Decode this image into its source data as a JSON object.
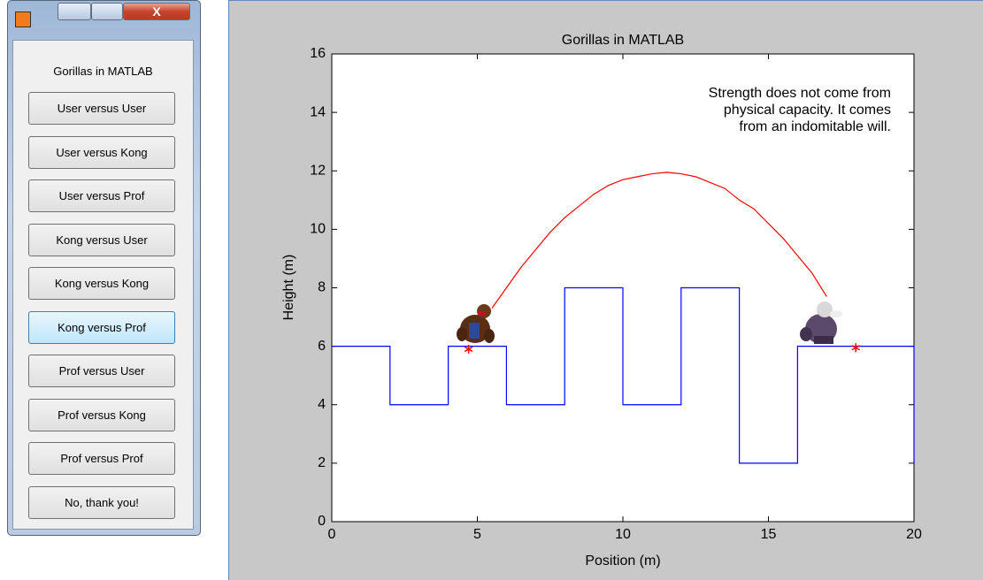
{
  "menu": {
    "title": "Gorillas in MATLAB",
    "buttons": [
      "User versus User",
      "User versus Kong",
      "User versus Prof",
      "Kong versus User",
      "Kong versus Kong",
      "Kong versus Prof",
      "Prof versus User",
      "Prof versus Kong",
      "Prof versus Prof",
      "No, thank you!"
    ],
    "close": "X"
  },
  "chart_data": {
    "type": "line",
    "title": "Gorillas in MATLAB",
    "xlabel": "Position (m)",
    "ylabel": "Height (m)",
    "xlim": [
      0,
      20
    ],
    "ylim": [
      0,
      16
    ],
    "xticks": [
      0,
      5,
      10,
      15,
      20
    ],
    "yticks": [
      0,
      2,
      4,
      6,
      8,
      10,
      12,
      14,
      16
    ],
    "annotation": [
      "Strength does not come from",
      "physical capacity. It comes",
      "from an indomitable will."
    ],
    "series": [
      {
        "color": "#0000ff",
        "style": "line",
        "x": [
          0,
          2,
          2,
          4,
          4,
          6,
          6,
          8,
          8,
          10,
          10,
          12,
          12,
          14,
          14,
          16,
          16,
          20,
          20
        ],
        "values": [
          6,
          6,
          4,
          4,
          6,
          6,
          4,
          4,
          8,
          8,
          4,
          4,
          8,
          8,
          2,
          2,
          6,
          6,
          2
        ]
      },
      {
        "color": "#ff0000",
        "style": "line",
        "x": [
          5.5,
          6,
          6.5,
          7,
          7.5,
          8,
          8.5,
          9,
          9.5,
          10,
          10.5,
          11,
          11.5,
          12,
          12.5,
          13,
          13.5,
          14,
          14.5,
          15,
          15.5,
          16,
          16.5,
          17
        ],
        "values": [
          7.3,
          8.0,
          8.7,
          9.3,
          9.9,
          10.4,
          10.8,
          11.2,
          11.5,
          11.7,
          11.8,
          11.9,
          11.95,
          11.9,
          11.8,
          11.6,
          11.4,
          11.0,
          10.7,
          10.2,
          9.7,
          9.1,
          8.5,
          7.7
        ]
      },
      {
        "color": "#ff0000",
        "style": "marker",
        "x": [
          4.7,
          18
        ],
        "values": [
          5.9,
          5.95
        ]
      }
    ]
  }
}
